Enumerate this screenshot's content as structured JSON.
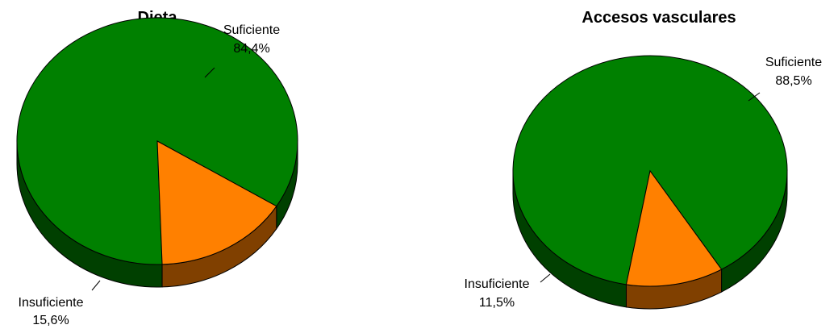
{
  "chart_data": [
    {
      "type": "pie",
      "title": "Dieta",
      "slices": [
        {
          "label": "Suficiente",
          "value": 84.4,
          "display": "84,4%",
          "color": "#008000",
          "side_color": "#004000"
        },
        {
          "label": "Insuficiente",
          "value": 15.6,
          "display": "15,6%",
          "color": "#ff8000",
          "side_color": "#804000"
        }
      ]
    },
    {
      "type": "pie",
      "title": "Accesos vasculares",
      "slices": [
        {
          "label": "Suficiente",
          "value": 88.5,
          "display": "88,5%",
          "color": "#008000",
          "side_color": "#004000"
        },
        {
          "label": "Insuficiente",
          "value": 11.5,
          "display": "11,5%",
          "color": "#ff8000",
          "side_color": "#804000"
        }
      ]
    }
  ]
}
